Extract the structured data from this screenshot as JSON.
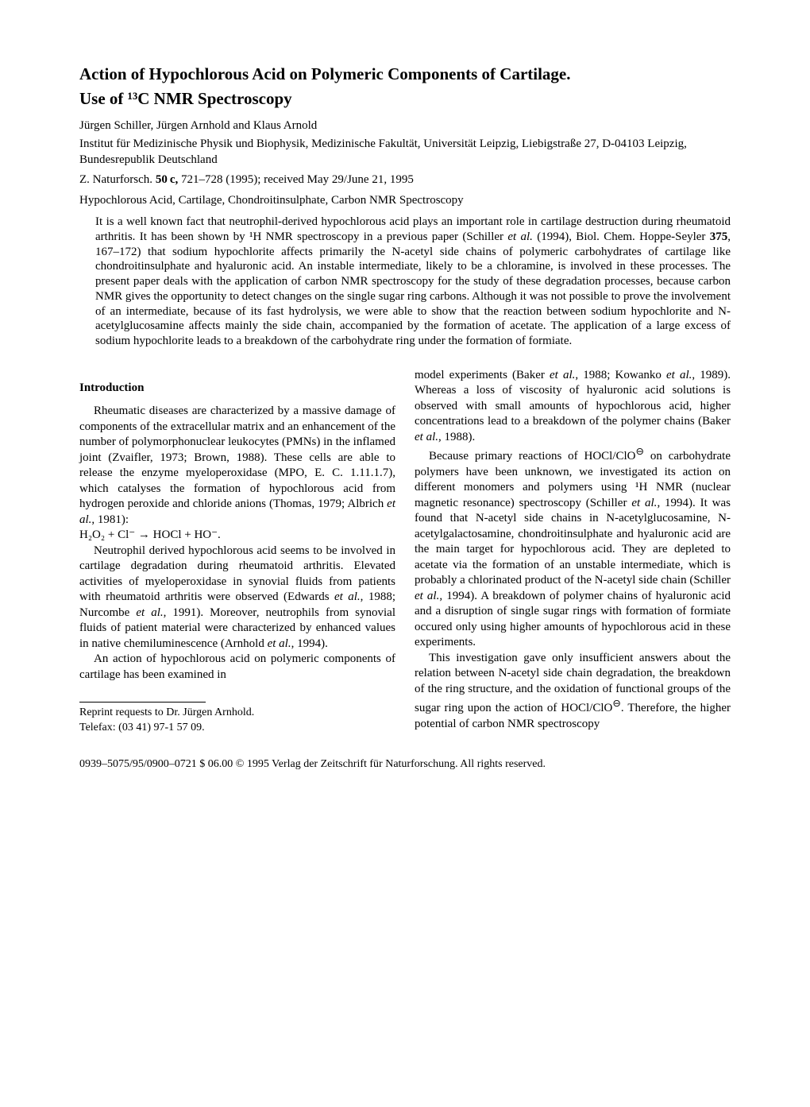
{
  "title_line1": "Action of Hypochlorous Acid on Polymeric Components of Cartilage.",
  "title_line2": "Use of ¹³C NMR Spectroscopy",
  "authors": "Jürgen Schiller, Jürgen Arnhold and Klaus Arnold",
  "affiliation": "Institut für Medizinische Physik und Biophysik, Medizinische Fakultät, Universität Leipzig, Liebigstraße 27, D-04103 Leipzig, Bundesrepublik Deutschland",
  "journal": "Z. Naturforsch. 50 c, 721–728 (1995); received May 29/June 21, 1995",
  "journal_bold": "50 c,",
  "journal_prefix": "Z. Naturforsch. ",
  "journal_suffix": " 721–728 (1995); received May 29/June 21, 1995",
  "keywords": "Hypochlorous Acid, Cartilage, Chondroitinsulphate, Carbon NMR Spectroscopy",
  "abstract": "It is a well known fact that neutrophil-derived hypochlorous acid plays an important role in cartilage destruction during rheumatoid arthritis. It has been shown by ¹H NMR spectroscopy in a previous paper (Schiller et al. (1994), Biol. Chem. Hoppe-Seyler 375, 167–172) that sodium hypochlorite affects primarily the N-acetyl side chains of polymeric carbohydrates of cartilage like chondroitinsulphate and hyaluronic acid. An instable intermediate, likely to be a chloramine, is involved in these processes. The present paper deals with the application of carbon NMR spectroscopy for the study of these degradation processes, because carbon NMR gives the opportunity to detect changes on the single sugar ring carbons. Although it was not possible to prove the involvement of an intermediate, because of its fast hydrolysis, we were able to show that the reaction between sodium hypochlorite and N-acetylglucosamine affects mainly the side chain, accompanied by the formation of acetate. The application of a large excess of sodium hypochlorite leads to a breakdown of the carbohydrate ring under the formation of formiate.",
  "section_intro": "Introduction",
  "intro_p1": "Rheumatic diseases are characterized by a massive damage of components of the extracellular matrix and an enhancement of the number of polymorphonuclear leukocytes (PMNs) in the inflamed joint (Zvaifler, 1973; Brown, 1988). These cells are able to release the enzyme myeloperoxidase (MPO, E. C. 1.11.1.7), which catalyses the formation of hypochlorous acid from hydrogen peroxide and chloride anions (Thomas, 1979; Albrich et al., 1981):",
  "equation": "H₂O₂ + Cl⁻ → HOCl + HO⁻.",
  "intro_p2": "Neutrophil derived hypochlorous acid seems to be involved in cartilage degradation during rheumatoid arthritis. Elevated activities of myeloperoxidase in synovial fluids from patients with rheumatoid arthritis were observed (Edwards et al., 1988; Nurcombe et al., 1991). Moreover, neutrophils from synovial fluids of patient material were characterized by enhanced values in native chemiluminescence (Arnhold et al., 1994).",
  "intro_p3": "An action of hypochlorous acid on polymeric components of cartilage has been examined in",
  "footnote_l1": "Reprint requests to Dr. Jürgen Arnhold.",
  "footnote_l2": "Telefax: (03 41) 97-1 57 09.",
  "col2_p1": "model experiments (Baker et al., 1988; Kowanko et al., 1989). Whereas a loss of viscosity of hyaluronic acid solutions is observed with small amounts of hypochlorous acid, higher concentrations lead to a breakdown of the polymer chains (Baker et al., 1988).",
  "col2_p2": "Because primary reactions of HOCl/ClO⊖ on carbohydrate polymers have been unknown, we investigated its action on different monomers and polymers using ¹H NMR (nuclear magnetic resonance) spectroscopy (Schiller et al., 1994). It was found that N-acetyl side chains in N-acetylglucosamine, N-acetylgalactosamine, chondroitinsulphate and hyaluronic acid are the main target for hypochlorous acid. They are depleted to acetate via the formation of an unstable intermediate, which is probably a chlorinated product of the N-acetyl side chain (Schiller et al., 1994). A breakdown of polymer chains of hyaluronic acid and a disruption of single sugar rings with formation of formiate occured only using higher amounts of hypochlorous acid in these experiments.",
  "col2_p3": "This investigation gave only insufficient answers about the relation between N-acetyl side chain degradation, the breakdown of the ring structure, and the oxidation of functional groups of the sugar ring upon the action of HOCl/ClO⊖. Therefore, the higher potential of carbon NMR spectroscopy",
  "bottom_issn": "0939–5075/95/0900–0721 $ 06.00 ",
  "bottom_copyright": " 1995 Verlag der Zeitschrift für Naturforschung. All rights reserved.",
  "copyright_symbol": "©"
}
